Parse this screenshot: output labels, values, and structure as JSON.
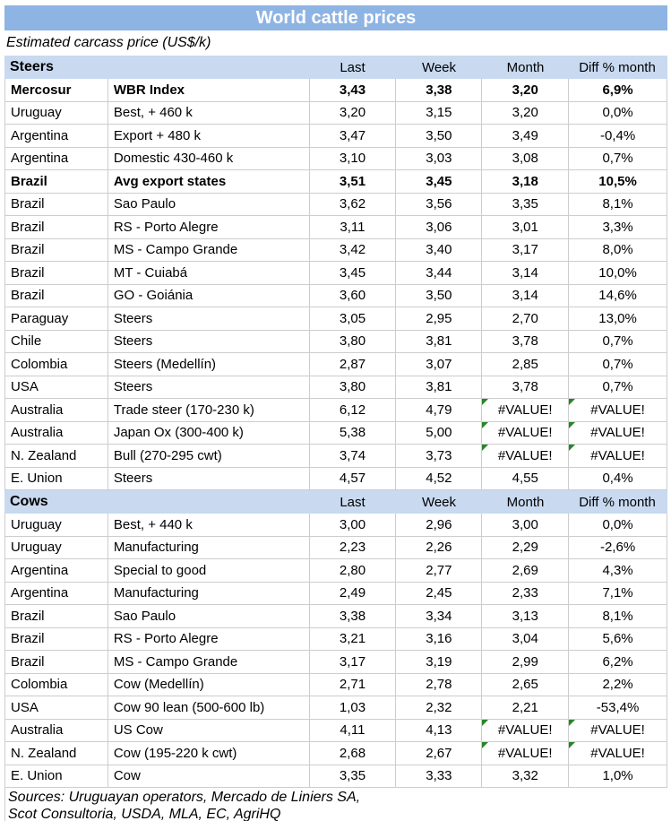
{
  "title": "World cattle prices",
  "subtitle": "Estimated carcass price (US$/k)",
  "column_headers": [
    "Last",
    "Week",
    "Month",
    "Diff % month"
  ],
  "error_value": "#VALUE!",
  "colors": {
    "title_bg": "#8EB4E3",
    "title_text": "#FFFFFF",
    "section_header_bg": "#C8D9F0",
    "grid_border": "#CDCDCD",
    "error_marker_green": "#278627"
  },
  "sections": [
    {
      "label": "Steers",
      "rows": [
        {
          "region": "Mercosur",
          "item": "WBR Index",
          "last": "3,43",
          "week": "3,38",
          "month": "3,20",
          "diff": "6,9%",
          "bold": true
        },
        {
          "region": "Uruguay",
          "item": "Best, + 460 k",
          "last": "3,20",
          "week": "3,15",
          "month": "3,20",
          "diff": "0,0%",
          "bold": false
        },
        {
          "region": "Argentina",
          "item": "Export + 480 k",
          "last": "3,47",
          "week": "3,50",
          "month": "3,49",
          "diff": "-0,4%",
          "bold": false
        },
        {
          "region": "Argentina",
          "item": "Domestic 430-460 k",
          "last": "3,10",
          "week": "3,03",
          "month": "3,08",
          "diff": "0,7%",
          "bold": false
        },
        {
          "region": "Brazil",
          "item": "Avg export states",
          "last": "3,51",
          "week": "3,45",
          "month": "3,18",
          "diff": "10,5%",
          "bold": true
        },
        {
          "region": "Brazil",
          "item": "Sao Paulo",
          "last": "3,62",
          "week": "3,56",
          "month": "3,35",
          "diff": "8,1%",
          "bold": false
        },
        {
          "region": "Brazil",
          "item": "RS - Porto Alegre",
          "last": "3,11",
          "week": "3,06",
          "month": "3,01",
          "diff": "3,3%",
          "bold": false
        },
        {
          "region": "Brazil",
          "item": "MS - Campo Grande",
          "last": "3,42",
          "week": "3,40",
          "month": "3,17",
          "diff": "8,0%",
          "bold": false
        },
        {
          "region": "Brazil",
          "item": "MT - Cuiabá",
          "last": "3,45",
          "week": "3,44",
          "month": "3,14",
          "diff": "10,0%",
          "bold": false
        },
        {
          "region": "Brazil",
          "item": "GO - Goiánia",
          "last": "3,60",
          "week": "3,50",
          "month": "3,14",
          "diff": "14,6%",
          "bold": false
        },
        {
          "region": "Paraguay",
          "item": "Steers",
          "last": "3,05",
          "week": "2,95",
          "month": "2,70",
          "diff": "13,0%",
          "bold": false
        },
        {
          "region": "Chile",
          "item": "Steers",
          "last": "3,80",
          "week": "3,81",
          "month": "3,78",
          "diff": "0,7%",
          "bold": false
        },
        {
          "region": "Colombia",
          "item": "Steers (Medellín)",
          "last": "2,87",
          "week": "3,07",
          "month": "2,85",
          "diff": "0,7%",
          "bold": false
        },
        {
          "region": "USA",
          "item": "Steers",
          "last": "3,80",
          "week": "3,81",
          "month": "3,78",
          "diff": "0,7%",
          "bold": false
        },
        {
          "region": "Australia",
          "item": "Trade steer (170-230 k)",
          "last": "6,12",
          "week": "4,79",
          "month": "#VALUE!",
          "diff": "#VALUE!",
          "bold": false
        },
        {
          "region": "Australia",
          "item": "Japan Ox (300-400 k)",
          "last": "5,38",
          "week": "5,00",
          "month": "#VALUE!",
          "diff": "#VALUE!",
          "bold": false
        },
        {
          "region": "N. Zealand",
          "item": "Bull (270-295 cwt)",
          "last": "3,74",
          "week": "3,73",
          "month": "#VALUE!",
          "diff": "#VALUE!",
          "bold": false
        },
        {
          "region": "E. Union",
          "item": "Steers",
          "last": "4,57",
          "week": "4,52",
          "month": "4,55",
          "diff": "0,4%",
          "bold": false
        }
      ]
    },
    {
      "label": "Cows",
      "rows": [
        {
          "region": "Uruguay",
          "item": "Best, + 440 k",
          "last": "3,00",
          "week": "2,96",
          "month": "3,00",
          "diff": "0,0%",
          "bold": false
        },
        {
          "region": "Uruguay",
          "item": "Manufacturing",
          "last": "2,23",
          "week": "2,26",
          "month": "2,29",
          "diff": "-2,6%",
          "bold": false
        },
        {
          "region": "Argentina",
          "item": "Special to good",
          "last": "2,80",
          "week": "2,77",
          "month": "2,69",
          "diff": "4,3%",
          "bold": false
        },
        {
          "region": "Argentina",
          "item": "Manufacturing",
          "last": "2,49",
          "week": "2,45",
          "month": "2,33",
          "diff": "7,1%",
          "bold": false
        },
        {
          "region": "Brazil",
          "item": "Sao Paulo",
          "last": "3,38",
          "week": "3,34",
          "month": "3,13",
          "diff": "8,1%",
          "bold": false
        },
        {
          "region": "Brazil",
          "item": "RS - Porto Alegre",
          "last": "3,21",
          "week": "3,16",
          "month": "3,04",
          "diff": "5,6%",
          "bold": false
        },
        {
          "region": "Brazil",
          "item": "MS - Campo Grande",
          "last": "3,17",
          "week": "3,19",
          "month": "2,99",
          "diff": "6,2%",
          "bold": false
        },
        {
          "region": "Colombia",
          "item": "Cow (Medellín)",
          "last": "2,71",
          "week": "2,78",
          "month": "2,65",
          "diff": "2,2%",
          "bold": false
        },
        {
          "region": "USA",
          "item": "Cow 90 lean (500-600 lb)",
          "last": "1,03",
          "week": "2,32",
          "month": "2,21",
          "diff": "-53,4%",
          "bold": false
        },
        {
          "region": "Australia",
          "item": "US Cow",
          "last": "4,11",
          "week": "4,13",
          "month": "#VALUE!",
          "diff": "#VALUE!",
          "bold": false
        },
        {
          "region": "N. Zealand",
          "item": "Cow (195-220 k cwt)",
          "last": "2,68",
          "week": "2,67",
          "month": "#VALUE!",
          "diff": "#VALUE!",
          "bold": false
        },
        {
          "region": "E. Union",
          "item": "Cow",
          "last": "3,35",
          "week": "3,33",
          "month": "3,32",
          "diff": "1,0%",
          "bold": false
        }
      ]
    }
  ],
  "footer_lines": [
    "Sources: Uruguayan operators, Mercado de Liniers SA,",
    "Scot Consultoria, USDA, MLA, EC, AgriHQ"
  ]
}
